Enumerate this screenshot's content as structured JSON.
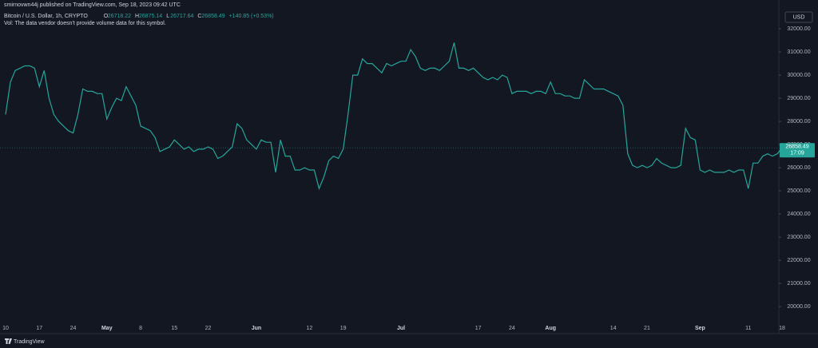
{
  "chart_data": {
    "type": "line",
    "header": "smirnovwn44j published on TradingView.com, Sep 18, 2023 09:42 UTC",
    "title": "Bitcoin / U.S. Dollar, 1h, CRYPTO",
    "ohlc": [
      {
        "key": "O",
        "value": "26718.22"
      },
      {
        "key": "H",
        "value": "26875.14"
      },
      {
        "key": "L",
        "value": "26717.64"
      },
      {
        "key": "C",
        "value": "26858.49"
      }
    ],
    "change": "+140.85 (+0.53%)",
    "volume_note": "Vol: The data vendor doesn't provide volume data for this symbol.",
    "currency": "USD",
    "countdown": "17:09",
    "brand": "TradingView",
    "color": "#26a69a",
    "grid": false,
    "categories": [
      "10",
      null,
      null,
      null,
      null,
      null,
      null,
      "17",
      null,
      null,
      null,
      null,
      null,
      null,
      "24",
      null,
      null,
      null,
      null,
      null,
      null,
      "May",
      null,
      null,
      null,
      null,
      null,
      null,
      "8",
      null,
      null,
      null,
      null,
      null,
      null,
      "15",
      null,
      null,
      null,
      null,
      null,
      null,
      "22",
      null,
      null,
      null,
      null,
      null,
      null,
      null,
      null,
      null,
      "Jun",
      null,
      null,
      null,
      null,
      null,
      null,
      null,
      null,
      null,
      null,
      "12",
      null,
      null,
      null,
      null,
      null,
      null,
      "19",
      null,
      null,
      null,
      null,
      null,
      null,
      null,
      null,
      null,
      null,
      null,
      "Jul",
      null,
      null,
      null,
      null,
      null,
      null,
      null,
      null,
      null,
      null,
      null,
      null,
      null,
      null,
      null,
      "17",
      null,
      null,
      null,
      null,
      null,
      null,
      "24",
      null,
      null,
      null,
      null,
      null,
      null,
      null,
      "Aug",
      null,
      null,
      null,
      null,
      null,
      null,
      null,
      null,
      null,
      null,
      null,
      null,
      "14",
      null,
      null,
      null,
      null,
      null,
      null,
      "21",
      null,
      null,
      null,
      null,
      null,
      null,
      null,
      null,
      null,
      null,
      "Sep",
      null,
      null,
      null,
      null,
      null,
      null,
      null,
      null,
      null,
      "11",
      null,
      null,
      null,
      null,
      null,
      null,
      "18"
    ],
    "values": [
      28300,
      29700,
      30200,
      30300,
      30400,
      30400,
      30300,
      29500,
      30200,
      29000,
      28300,
      28000,
      27800,
      27600,
      27500,
      28300,
      29400,
      29300,
      29300,
      29200,
      29200,
      28100,
      28600,
      29000,
      28900,
      29500,
      29100,
      28700,
      27800,
      27700,
      27600,
      27300,
      26700,
      26800,
      26900,
      27200,
      27000,
      26800,
      26900,
      26700,
      26800,
      26800,
      26900,
      26800,
      26400,
      26500,
      26700,
      26900,
      27900,
      27700,
      27200,
      27000,
      26800,
      27200,
      27100,
      27100,
      25800,
      27200,
      26500,
      26500,
      25900,
      25900,
      26000,
      25900,
      25900,
      25100,
      25600,
      26300,
      26500,
      26400,
      26800,
      28300,
      30000,
      30000,
      30700,
      30500,
      30500,
      30300,
      30100,
      30500,
      30400,
      30500,
      30600,
      30600,
      31100,
      30800,
      30300,
      30200,
      30300,
      30300,
      30200,
      30400,
      30600,
      31400,
      30300,
      30300,
      30200,
      30300,
      30100,
      29900,
      29800,
      29900,
      29800,
      30000,
      29900,
      29200,
      29300,
      29300,
      29300,
      29200,
      29300,
      29300,
      29200,
      29700,
      29200,
      29200,
      29100,
      29100,
      29000,
      29000,
      29800,
      29600,
      29400,
      29400,
      29400,
      29300,
      29200,
      29100,
      28700,
      26600,
      26100,
      26000,
      26100,
      26000,
      26100,
      26400,
      26200,
      26100,
      26000,
      26000,
      26100,
      27700,
      27300,
      27200,
      25900,
      25800,
      25900,
      25800,
      25800,
      25800,
      25900,
      25800,
      25900,
      25900,
      25100,
      26200,
      26200,
      26500,
      26600,
      26500,
      26600,
      26858.49
    ],
    "ylim": [
      19280,
      32900
    ],
    "yticks": [
      {
        "value": 20000,
        "label": "20000.00"
      },
      {
        "value": 21000,
        "label": "21000.00"
      },
      {
        "value": 22000,
        "label": "22000.00"
      },
      {
        "value": 23000,
        "label": "23000.00"
      },
      {
        "value": 24000,
        "label": "24000.00"
      },
      {
        "value": 25000,
        "label": "25000.00"
      },
      {
        "value": 26000,
        "label": "26000.00"
      },
      {
        "value": 27000,
        "label": "27000.00"
      },
      {
        "value": 28000,
        "label": "28000.00"
      },
      {
        "value": 29000,
        "label": "29000.00"
      },
      {
        "value": 30000,
        "label": "30000.00"
      },
      {
        "value": 31000,
        "label": "31000.00"
      },
      {
        "value": 32000,
        "label": "32000.00"
      }
    ]
  }
}
